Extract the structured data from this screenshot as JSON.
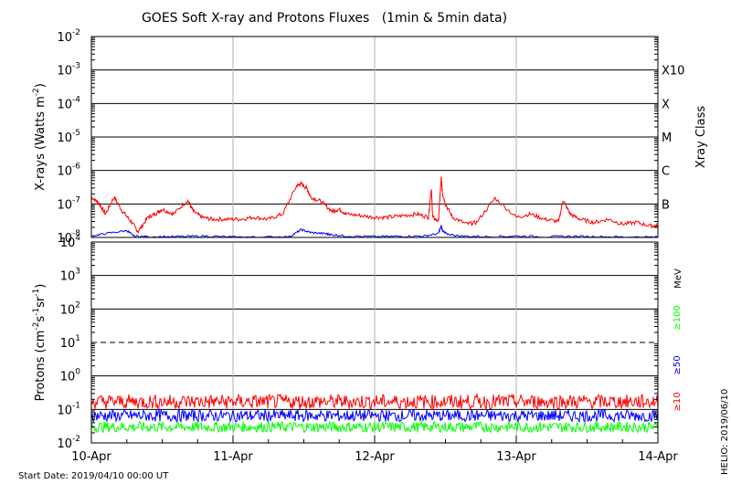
{
  "title": "GOES Soft X-ray and Protons Fluxes   (1min & 5min data)",
  "footer_start": "Start Date: 2019/04/10 00:00 UT",
  "side_credit": "HELIO: 2019/06/10",
  "colors": {
    "red": "#ff0000",
    "blue": "#0000ff",
    "green": "#00ff00",
    "grid": "#000000",
    "vgrid": "#b0b0b0"
  },
  "chart_data": [
    {
      "type": "line",
      "panel": "xray",
      "ylabel_main": "X-rays (Watts m",
      "ylabel_exp": "-2",
      "ylabel_close": ")",
      "yscale": "log",
      "ylim_exp": [
        -8,
        -2
      ],
      "ytick_exps": [
        "-8",
        "-7",
        "-6",
        "-5",
        "-4",
        "-3",
        "-2"
      ],
      "right_label": "Xray Class",
      "class_labels": [
        {
          "label": "B",
          "exp": -7
        },
        {
          "label": "C",
          "exp": -6
        },
        {
          "label": "M",
          "exp": -5
        },
        {
          "label": "X",
          "exp": -4
        },
        {
          "label": "X10",
          "exp": -3
        }
      ],
      "xlim_days": [
        0,
        4
      ],
      "series": [
        {
          "color": "red",
          "x": [
            0.0,
            0.05,
            0.1,
            0.16,
            0.22,
            0.28,
            0.33,
            0.4,
            0.45,
            0.5,
            0.58,
            0.68,
            0.72,
            0.78,
            0.85,
            0.95,
            1.05,
            1.15,
            1.25,
            1.35,
            1.45,
            1.48,
            1.52,
            1.55,
            1.62,
            1.7,
            1.75,
            1.8,
            1.9,
            2.0,
            2.1,
            2.2,
            2.3,
            2.38,
            2.4,
            2.41,
            2.45,
            2.47,
            2.48,
            2.5,
            2.55,
            2.65,
            2.72,
            2.85,
            3.0,
            3.1,
            3.2,
            3.3,
            3.33,
            3.38,
            3.45,
            3.55,
            3.65,
            3.75,
            3.85,
            3.95,
            4.0
          ],
          "y": [
            1.6e-07,
            1.1e-07,
            5e-08,
            1.6e-07,
            6e-08,
            3e-08,
            1.5e-08,
            4e-08,
            5e-08,
            7e-08,
            5e-08,
            1.3e-07,
            6e-08,
            4e-08,
            3.5e-08,
            3.5e-08,
            3.5e-08,
            4e-08,
            3.5e-08,
            5e-08,
            3.5e-07,
            4e-07,
            3e-07,
            1.6e-07,
            1.2e-07,
            6e-08,
            7e-08,
            5e-08,
            4.5e-08,
            4e-08,
            4e-08,
            4.5e-08,
            5e-08,
            4e-08,
            3e-07,
            4e-08,
            3e-08,
            6e-07,
            2e-07,
            1e-07,
            4e-08,
            2.5e-08,
            2.8e-08,
            1.5e-07,
            4e-08,
            5e-08,
            3.5e-08,
            3e-08,
            1.3e-07,
            5e-08,
            3.5e-08,
            2.8e-08,
            3.5e-08,
            2.5e-08,
            2.8e-08,
            2.2e-08,
            2.2e-08
          ]
        },
        {
          "color": "blue",
          "x": [
            0.0,
            0.1,
            0.25,
            0.3,
            0.4,
            0.6,
            0.8,
            1.0,
            1.2,
            1.4,
            1.48,
            1.55,
            1.65,
            1.7,
            1.8,
            2.0,
            2.2,
            2.35,
            2.45,
            2.47,
            2.48,
            2.5,
            2.6,
            2.8,
            3.0,
            3.2,
            3.4,
            3.6,
            3.8,
            4.0
          ],
          "y": [
            1.1e-08,
            1.3e-08,
            1.6e-08,
            1.1e-08,
            1.05e-08,
            1.05e-08,
            1.1e-08,
            1.02e-08,
            1.02e-08,
            1.05e-08,
            1.7e-08,
            1.4e-08,
            1.3e-08,
            1.2e-08,
            1.1e-08,
            1.05e-08,
            1.08e-08,
            1.1e-08,
            1.3e-08,
            2.2e-08,
            1.6e-08,
            1.3e-08,
            1.1e-08,
            1.05e-08,
            1.1e-08,
            1.05e-08,
            1.08e-08,
            1.05e-08,
            1.02e-08,
            1.02e-08
          ]
        }
      ]
    },
    {
      "type": "line",
      "panel": "protons",
      "ylabel": "Protons (cm-2s-1sr-1)",
      "yscale": "log",
      "ylim_exp": [
        -2,
        4
      ],
      "ytick_exps": [
        "-2",
        "-1",
        "0",
        "1",
        "2",
        "3",
        "4"
      ],
      "threshold_exp": 1,
      "xlim_days": [
        0,
        4
      ],
      "xtick_labels": [
        "10-Apr",
        "11-Apr",
        "12-Apr",
        "13-Apr",
        "14-Apr"
      ],
      "right_unit": "MeV",
      "series": [
        {
          "name": "≥10",
          "color": "red",
          "level": 0.17
        },
        {
          "name": "≥50",
          "color": "blue",
          "level": 0.065
        },
        {
          "name": "≥100",
          "color": "green",
          "level": 0.03
        }
      ]
    }
  ]
}
